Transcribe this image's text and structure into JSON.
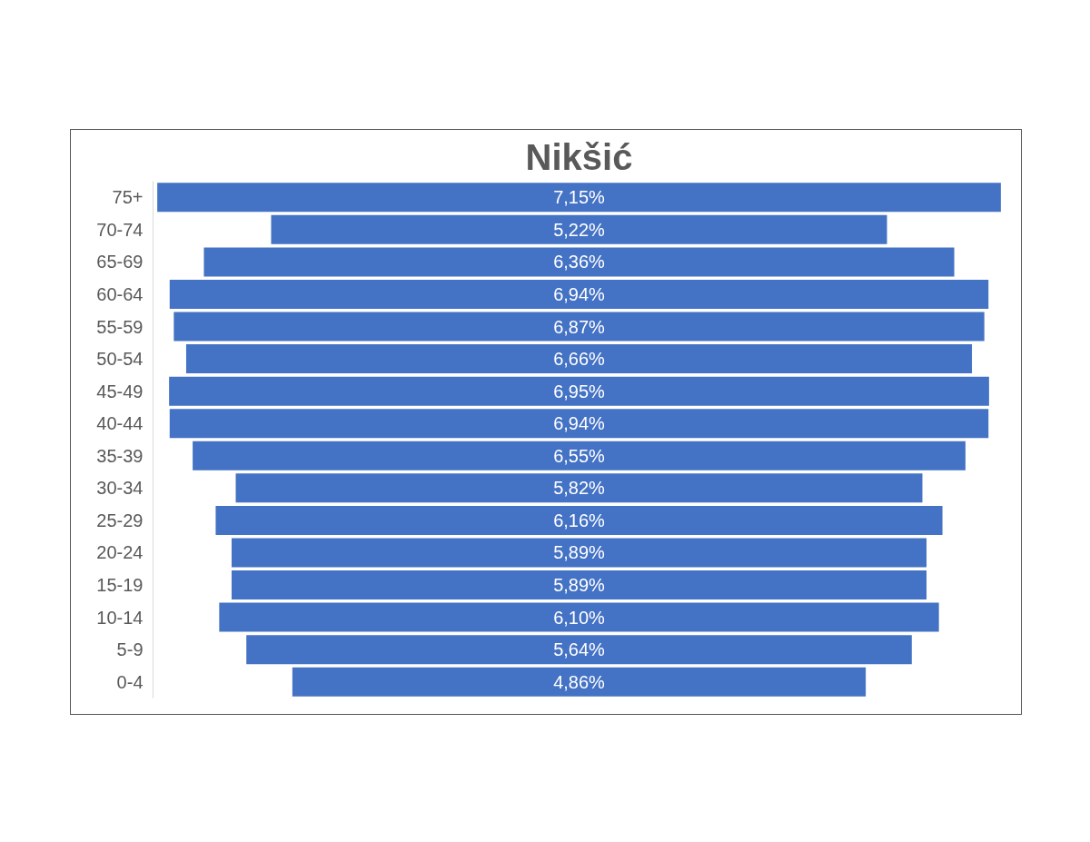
{
  "chart_data": {
    "type": "other",
    "title": "Nikšić",
    "categories": [
      "75+",
      "70-74",
      "65-69",
      "60-64",
      "55-59",
      "50-54",
      "45-49",
      "40-44",
      "35-39",
      "30-34",
      "25-29",
      "20-24",
      "15-19",
      "10-14",
      "5-9",
      "0-4"
    ],
    "values": [
      7.15,
      5.22,
      6.36,
      6.94,
      6.87,
      6.66,
      6.95,
      6.94,
      6.55,
      5.82,
      6.16,
      5.89,
      5.89,
      6.1,
      5.64,
      4.86
    ],
    "value_labels": [
      "7,15%",
      "5,22%",
      "6,36%",
      "6,94%",
      "6,87%",
      "6,66%",
      "6,95%",
      "6,94%",
      "6,55%",
      "5,82%",
      "6,16%",
      "5,89%",
      "5,89%",
      "6,10%",
      "5,64%",
      "4,86%"
    ],
    "color": "#4472c4"
  }
}
